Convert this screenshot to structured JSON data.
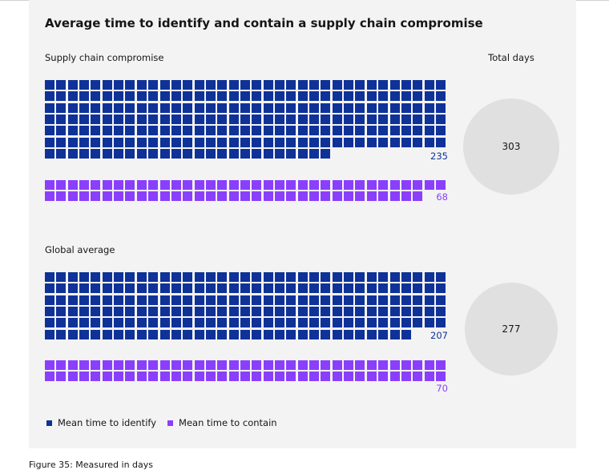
{
  "title": "Average time to identify and contain a supply chain compromise",
  "total_days_label": "Total days",
  "caption": "Figure 35: Measured in days",
  "legend": {
    "identify": "Mean time to identify",
    "contain": "Mean time to contain"
  },
  "colors": {
    "identify": "#0f3299",
    "contain": "#8a3ffc",
    "circle": "#e0e0e0"
  },
  "chart_data": {
    "type": "waffle",
    "title": "Average time to identify and contain a supply chain compromise",
    "unit": "days",
    "squares_per_row": 35,
    "groups": [
      {
        "name": "Supply chain compromise",
        "identify": 235,
        "contain": 68,
        "total": 303
      },
      {
        "name": "Global average",
        "identify": 207,
        "contain": 70,
        "total": 277
      }
    ]
  },
  "groups_text": [
    {
      "name": "Supply chain compromise",
      "identify": "235",
      "contain": "68",
      "total": "303"
    },
    {
      "name": "Global average",
      "identify": "207",
      "contain": "70",
      "total": "277"
    }
  ]
}
